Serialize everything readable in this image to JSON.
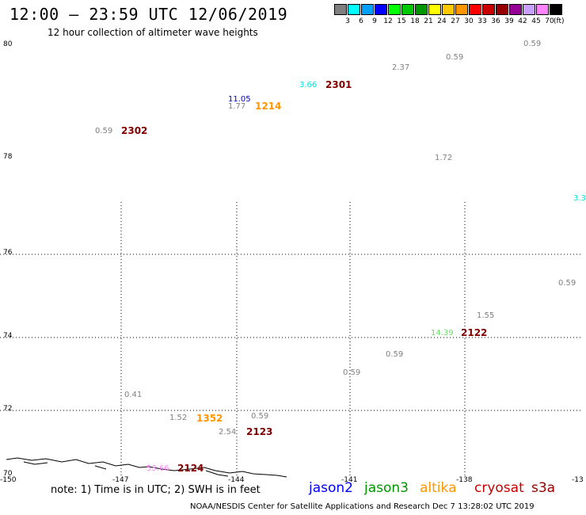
{
  "header": {
    "title": "12:00 – 23:59 UTC 12/06/2019",
    "subtitle": "12 hour collection of altimeter wave heights"
  },
  "legend": {
    "unit": "(ft)",
    "bins": [
      {
        "label": "3",
        "color": "#7f7f7f"
      },
      {
        "label": "6",
        "color": "#00ffff"
      },
      {
        "label": "9",
        "color": "#00a0ff"
      },
      {
        "label": "12",
        "color": "#0000ff"
      },
      {
        "label": "15",
        "color": "#00ff00"
      },
      {
        "label": "18",
        "color": "#00c800"
      },
      {
        "label": "21",
        "color": "#009600"
      },
      {
        "label": "24",
        "color": "#ffff00"
      },
      {
        "label": "27",
        "color": "#ffc800"
      },
      {
        "label": "30",
        "color": "#ff9600"
      },
      {
        "label": "33",
        "color": "#ff0000"
      },
      {
        "label": "36",
        "color": "#c80000"
      },
      {
        "label": "39",
        "color": "#960000"
      },
      {
        "label": "42",
        "color": "#960096"
      },
      {
        "label": "45",
        "color": "#c8a0ff"
      },
      {
        "label": "70",
        "color": "#ff82ff"
      },
      {
        "label": "",
        "color": "#000000"
      }
    ]
  },
  "axes": {
    "lat_labels": [
      "80",
      "78",
      "76",
      "74",
      "72",
      "70"
    ],
    "lon_labels": [
      "-150",
      "-147",
      "-144",
      "-141",
      "-138",
      "-13"
    ]
  },
  "wave_labels": [
    {
      "text": "0.59",
      "color": "#808080"
    },
    {
      "text": "0.59",
      "color": "#808080"
    },
    {
      "text": "2.37",
      "color": "#808080"
    },
    {
      "text": "3.66",
      "color": "#00e0e0"
    },
    {
      "text": "11.05",
      "color": "#0000cc"
    },
    {
      "text": "1.77",
      "color": "#808080"
    },
    {
      "text": "0.59",
      "color": "#808080"
    },
    {
      "text": "1.72",
      "color": "#808080"
    },
    {
      "text": "3.3",
      "color": "#00e0e0"
    },
    {
      "text": "0.59",
      "color": "#808080"
    },
    {
      "text": "1.55",
      "color": "#808080"
    },
    {
      "text": "14.39",
      "color": "#66dd66"
    },
    {
      "text": "0.59",
      "color": "#808080"
    },
    {
      "text": "0.59",
      "color": "#808080"
    },
    {
      "text": "0.41",
      "color": "#808080"
    },
    {
      "text": "1.52",
      "color": "#808080"
    },
    {
      "text": "0.59",
      "color": "#808080"
    },
    {
      "text": "2.54",
      "color": "#808080"
    },
    {
      "text": "53.66",
      "color": "#ff82ff"
    }
  ],
  "time_labels": [
    {
      "text": "2301",
      "color": "#800000"
    },
    {
      "text": "1214",
      "color": "#ff9600"
    },
    {
      "text": "2302",
      "color": "#800000"
    },
    {
      "text": "2122",
      "color": "#800000"
    },
    {
      "text": "1352",
      "color": "#ff9600"
    },
    {
      "text": "2123",
      "color": "#800000"
    },
    {
      "text": "2124",
      "color": "#800000"
    }
  ],
  "footer": {
    "note": "note: 1) Time is in UTC; 2) SWH is in feet",
    "satellites": [
      {
        "name": "jason2",
        "color": "#0000ff"
      },
      {
        "name": "jason3",
        "color": "#009600"
      },
      {
        "name": "altika",
        "color": "#ff9600"
      },
      {
        "name": "cryosat",
        "color": "#c80000"
      },
      {
        "name": "s3a",
        "color": "#960000"
      }
    ],
    "credit": "NOAA/NESDIS Center for Satellite Applications and Research    Dec  7 13:28:02 UTC 2019"
  }
}
